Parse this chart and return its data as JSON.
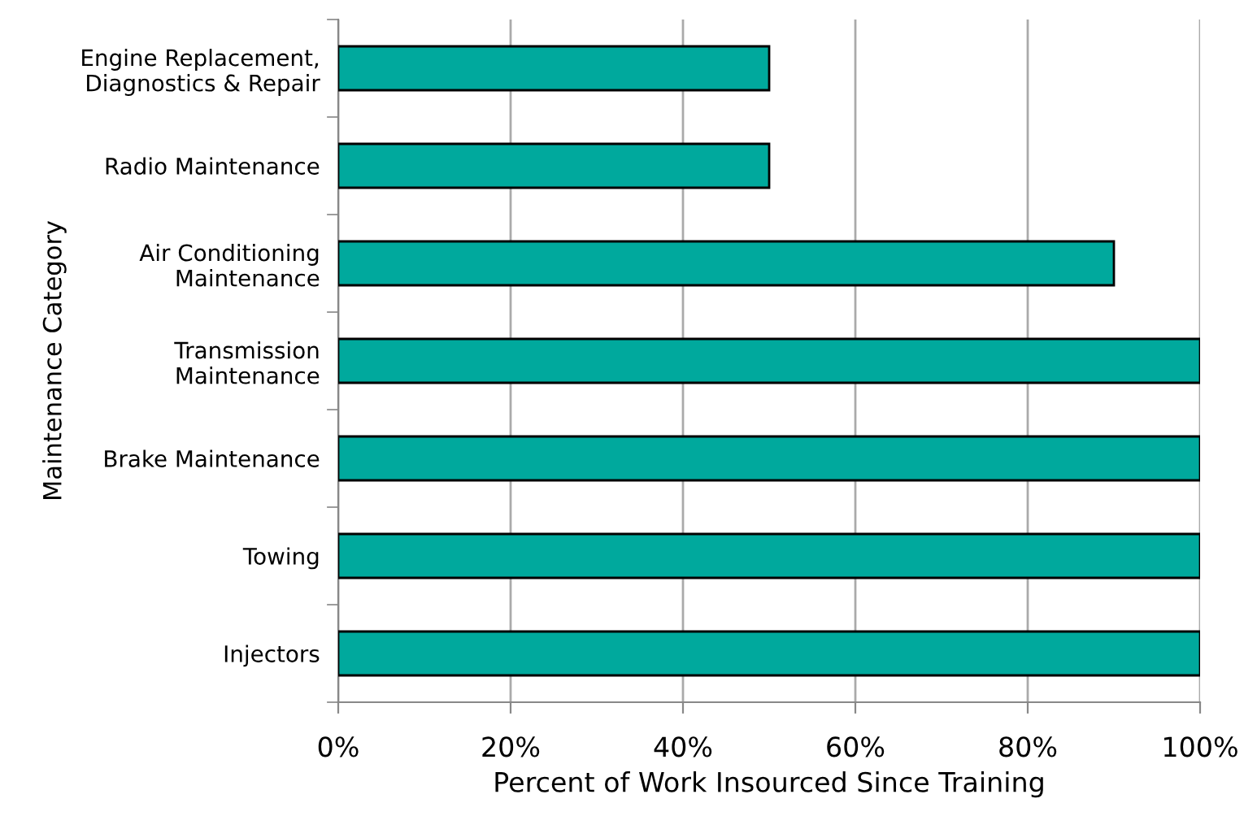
{
  "chart_data": {
    "type": "bar",
    "orientation": "horizontal",
    "categories": [
      "Engine Replacement,\nDiagnostics & Repair",
      "Radio Maintenance",
      "Air Conditioning\nMaintenance",
      "Transmission\nMaintenance",
      "Brake Maintenance",
      "Towing",
      "Injectors"
    ],
    "values": [
      50,
      50,
      90,
      100,
      100,
      100,
      100
    ],
    "color": "#00a99d",
    "xlabel": "Percent of Work Insourced Since Training",
    "ylabel": "Maintenance Category",
    "xlim": [
      0,
      100
    ],
    "xticks": [
      {
        "value": 0,
        "label": "0%"
      },
      {
        "value": 20,
        "label": "20%"
      },
      {
        "value": 40,
        "label": "40%"
      },
      {
        "value": 60,
        "label": "60%"
      },
      {
        "value": 80,
        "label": "80%"
      },
      {
        "value": 100,
        "label": "100%"
      }
    ],
    "grid": "x",
    "legend": false
  }
}
